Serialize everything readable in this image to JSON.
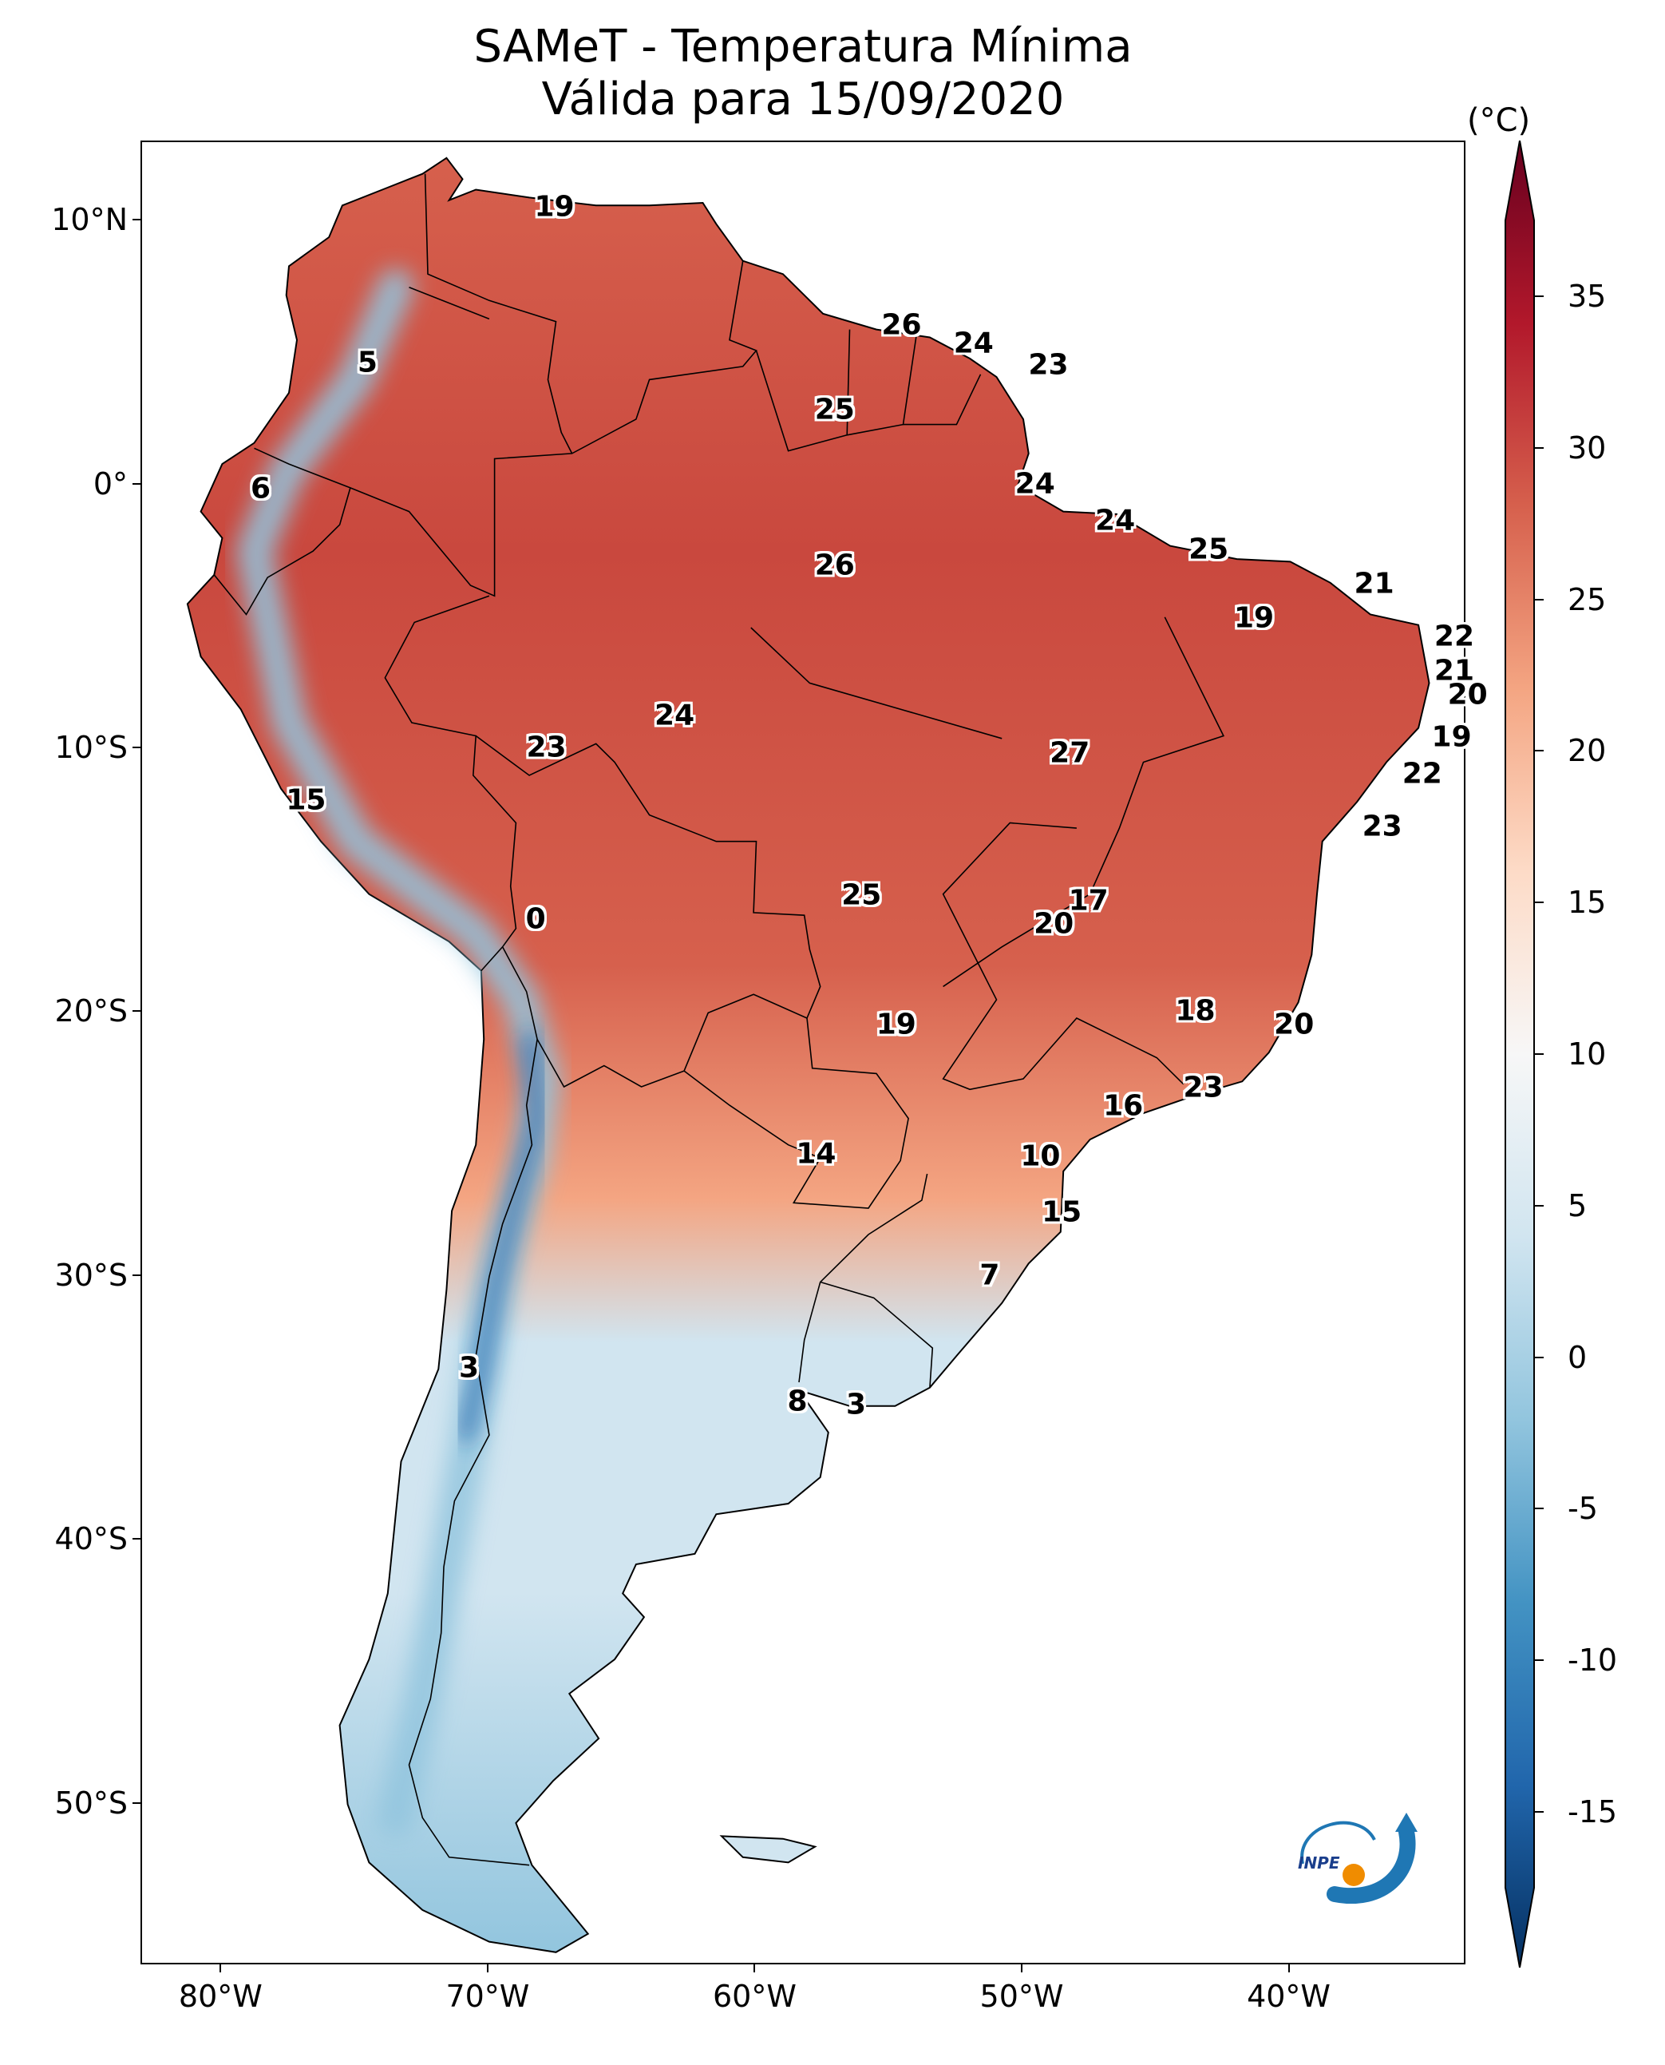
{
  "title": {
    "line1": "SAMeT - Temperatura Mínima",
    "line2": "Válida para 15/09/2020"
  },
  "map": {
    "extent": {
      "lon_min": -83,
      "lon_max": -33.5,
      "lat_min": -56,
      "lat_max": 13
    },
    "lat_ticks": [
      {
        "lat": 10,
        "label": "10°N"
      },
      {
        "lat": 0,
        "label": "0°"
      },
      {
        "lat": -10,
        "label": "10°S"
      },
      {
        "lat": -20,
        "label": "20°S"
      },
      {
        "lat": -30,
        "label": "30°S"
      },
      {
        "lat": -40,
        "label": "40°S"
      },
      {
        "lat": -50,
        "label": "50°S"
      }
    ],
    "lon_ticks": [
      {
        "lon": -80,
        "label": "80°W"
      },
      {
        "lon": -70,
        "label": "70°W"
      },
      {
        "lon": -60,
        "label": "60°W"
      },
      {
        "lon": -50,
        "label": "50°W"
      },
      {
        "lon": -40,
        "label": "40°W"
      }
    ],
    "city_values": [
      {
        "lon": -67.5,
        "lat": 10.5,
        "value": "19"
      },
      {
        "lon": -54.5,
        "lat": 6.0,
        "value": "26"
      },
      {
        "lon": -51.8,
        "lat": 5.3,
        "value": "24"
      },
      {
        "lon": -49.0,
        "lat": 4.5,
        "value": "23"
      },
      {
        "lon": -74.5,
        "lat": 4.6,
        "value": "5"
      },
      {
        "lon": -57.0,
        "lat": 2.8,
        "value": "25"
      },
      {
        "lon": -78.5,
        "lat": -0.2,
        "value": "6"
      },
      {
        "lon": -49.5,
        "lat": 0.0,
        "value": "24"
      },
      {
        "lon": -46.5,
        "lat": -1.4,
        "value": "24"
      },
      {
        "lon": -43.0,
        "lat": -2.5,
        "value": "25"
      },
      {
        "lon": -57.0,
        "lat": -3.1,
        "value": "26"
      },
      {
        "lon": -36.8,
        "lat": -3.8,
        "value": "21"
      },
      {
        "lon": -41.3,
        "lat": -5.1,
        "value": "19"
      },
      {
        "lon": -33.8,
        "lat": -5.8,
        "value": "22"
      },
      {
        "lon": -33.8,
        "lat": -7.1,
        "value": "21"
      },
      {
        "lon": -33.3,
        "lat": -8.0,
        "value": "20"
      },
      {
        "lon": -63.0,
        "lat": -8.8,
        "value": "24"
      },
      {
        "lon": -33.9,
        "lat": -9.6,
        "value": "19"
      },
      {
        "lon": -67.8,
        "lat": -10.0,
        "value": "23"
      },
      {
        "lon": -48.2,
        "lat": -10.2,
        "value": "27"
      },
      {
        "lon": -35.0,
        "lat": -11.0,
        "value": "22"
      },
      {
        "lon": -76.8,
        "lat": -12.0,
        "value": "15"
      },
      {
        "lon": -36.5,
        "lat": -13.0,
        "value": "23"
      },
      {
        "lon": -56.0,
        "lat": -15.6,
        "value": "25"
      },
      {
        "lon": -47.5,
        "lat": -15.8,
        "value": "17"
      },
      {
        "lon": -48.8,
        "lat": -16.7,
        "value": "20"
      },
      {
        "lon": -68.2,
        "lat": -16.5,
        "value": "0"
      },
      {
        "lon": -43.5,
        "lat": -20.0,
        "value": "18"
      },
      {
        "lon": -39.8,
        "lat": -20.5,
        "value": "20"
      },
      {
        "lon": -54.7,
        "lat": -20.5,
        "value": "19"
      },
      {
        "lon": -43.2,
        "lat": -22.9,
        "value": "23"
      },
      {
        "lon": -46.2,
        "lat": -23.6,
        "value": "16"
      },
      {
        "lon": -57.7,
        "lat": -25.4,
        "value": "14"
      },
      {
        "lon": -49.3,
        "lat": -25.5,
        "value": "10"
      },
      {
        "lon": -48.5,
        "lat": -27.6,
        "value": "15"
      },
      {
        "lon": -51.2,
        "lat": -30.0,
        "value": "7"
      },
      {
        "lon": -70.7,
        "lat": -33.5,
        "value": "3"
      },
      {
        "lon": -58.4,
        "lat": -34.8,
        "value": "8"
      },
      {
        "lon": -56.2,
        "lat": -34.9,
        "value": "3"
      }
    ]
  },
  "colorbar": {
    "unit": "(°C)",
    "min": -15,
    "max": 35,
    "tick_values": [
      35,
      30,
      25,
      20,
      15,
      10,
      5,
      0,
      -5,
      -10,
      -15
    ],
    "tick_labels": [
      "35",
      "30",
      "25",
      "20",
      "15",
      "10",
      "5",
      "0",
      "-5",
      "-10",
      "-15"
    ],
    "colormap": "RdBu_r",
    "colormap_stops": [
      "#053061",
      "#2166ac",
      "#4393c3",
      "#92c5de",
      "#d1e5f0",
      "#f7f7f7",
      "#fddbc7",
      "#f4a582",
      "#d6604d",
      "#b2182b",
      "#67001f"
    ]
  },
  "logo": {
    "text": "INPE"
  },
  "colors": {
    "warm_north": "#d6604d",
    "warm_core": "#c9483e",
    "mild": "#f4a582",
    "cool": "#d1e5f0",
    "cold": "#92c5de",
    "andes_cold": "#2166ac",
    "logo_blue": "#1f77b4",
    "logo_orange": "#f08c00"
  }
}
